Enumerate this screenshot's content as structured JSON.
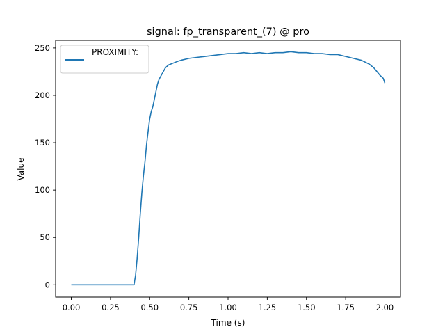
{
  "chart_data": {
    "type": "line",
    "title": "signal: fp_transparent_(7) @ pro",
    "xlabel": "Time (s)",
    "ylabel": "Value",
    "xlim": [
      -0.1,
      2.1
    ],
    "ylim": [
      -13,
      258
    ],
    "xticks": [
      0.0,
      0.25,
      0.5,
      0.75,
      1.0,
      1.25,
      1.5,
      1.75,
      2.0
    ],
    "xtick_labels": [
      "0.00",
      "0.25",
      "0.50",
      "0.75",
      "1.00",
      "1.25",
      "1.50",
      "1.75",
      "2.00"
    ],
    "yticks": [
      0,
      50,
      100,
      150,
      200,
      250
    ],
    "ytick_labels": [
      "0",
      "50",
      "100",
      "150",
      "200",
      "250"
    ],
    "grid": false,
    "legend_position": "top-left",
    "series": [
      {
        "name": "PROXIMITY:",
        "color": "#1f77b4",
        "x": [
          0.0,
          0.1,
          0.2,
          0.3,
          0.4,
          0.41,
          0.42,
          0.43,
          0.44,
          0.45,
          0.46,
          0.47,
          0.48,
          0.49,
          0.5,
          0.51,
          0.52,
          0.53,
          0.54,
          0.55,
          0.56,
          0.58,
          0.6,
          0.62,
          0.65,
          0.68,
          0.7,
          0.75,
          0.8,
          0.85,
          0.9,
          0.95,
          1.0,
          1.05,
          1.1,
          1.15,
          1.2,
          1.25,
          1.3,
          1.35,
          1.4,
          1.45,
          1.5,
          1.55,
          1.6,
          1.65,
          1.7,
          1.75,
          1.8,
          1.85,
          1.9,
          1.93,
          1.95,
          1.97,
          1.99,
          2.0
        ],
        "y": [
          0,
          0,
          0,
          0,
          0,
          10,
          28,
          50,
          75,
          97,
          115,
          130,
          148,
          162,
          175,
          183,
          188,
          196,
          204,
          212,
          217,
          223,
          229,
          232,
          234,
          236,
          237,
          239,
          240,
          241,
          242,
          243,
          244,
          244,
          245,
          244,
          245,
          244,
          245,
          245,
          246,
          245,
          245,
          244,
          244,
          243,
          243,
          241,
          239,
          237,
          233,
          229,
          225,
          221,
          218,
          213
        ]
      }
    ]
  }
}
